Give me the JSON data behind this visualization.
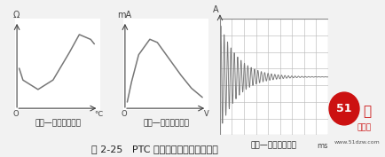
{
  "fig_bg": "#f2f2f2",
  "plot_bg": "#ffffff",
  "axis_color": "#444444",
  "curve_color": "#777777",
  "grid_color": "#bbbbbb",
  "border_color": "#888888",
  "label1": "电阻—温度特性曲线",
  "label2": "电压—电流特性曲线",
  "label3": "电流—时间特性曲线",
  "caption": "图 2-25   PTC 热敏电阻器三大特性曲线",
  "ax1_ylabel": "Ω",
  "ax1_xlabel": "℃",
  "ax1_origin": "O",
  "ax2_ylabel": "mA",
  "ax2_xlabel": "V",
  "ax2_origin": "O",
  "ax3_ylabel": "A",
  "ax3_xlabel": "ms",
  "sub_label_fontsize": 6.5,
  "caption_fontsize": 8.0,
  "title_color": "#222222",
  "logo_red": "#cc1111",
  "logo_gray": "#dddddd",
  "watermark_bg": "#e0e0e0"
}
